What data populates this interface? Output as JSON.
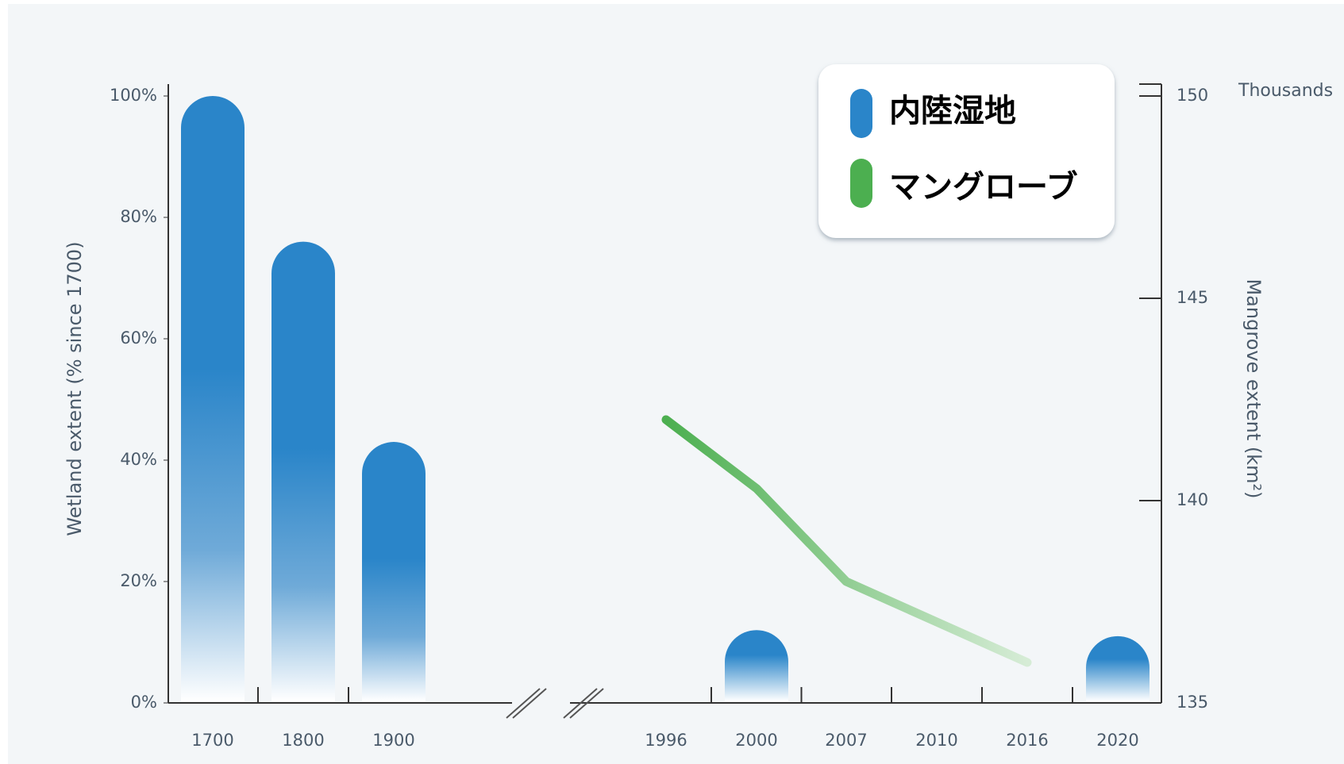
{
  "chart_data": {
    "type": "bar_line",
    "categories": [
      "1700",
      "1800",
      "1900",
      "1996",
      "2000",
      "2007",
      "2010",
      "2016",
      "2020"
    ],
    "series": [
      {
        "name": "内陸湿地",
        "color": "#2a85c9",
        "values": [
          100,
          76,
          43,
          null,
          12,
          null,
          null,
          null,
          11
        ]
      },
      {
        "name": "マングローブ",
        "color": "#4caf50",
        "axis": "y2",
        "values": [
          null,
          null,
          null,
          142,
          140.3,
          138,
          137,
          136,
          null
        ]
      }
    ],
    "ylabel": "Wetland extent (% since 1700)",
    "y2label": "Mangrove extent (km²)",
    "y2unit": "Thousands",
    "ylim": [
      0,
      100
    ],
    "yticks": [
      {
        "value": 0,
        "label": "0%"
      },
      {
        "value": 20,
        "label": "20%"
      },
      {
        "value": 40,
        "label": "40%"
      },
      {
        "value": 60,
        "label": "60%"
      },
      {
        "value": 80,
        "label": "80%"
      },
      {
        "value": 100,
        "label": "100%"
      }
    ],
    "y2lim": [
      135,
      150
    ],
    "y2ticks": [
      135,
      140,
      145,
      150
    ],
    "legend": "top-right"
  }
}
